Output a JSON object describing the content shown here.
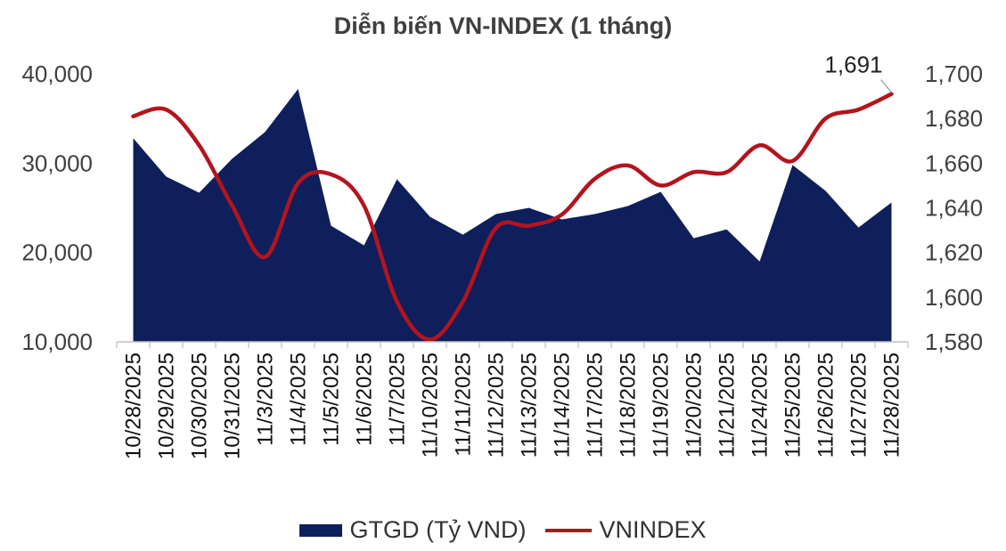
{
  "chart_data": {
    "type": "area+line",
    "title": "Diễn biến VN-INDEX (1 tháng)",
    "categories": [
      "10/28/2025",
      "10/29/2025",
      "10/30/2025",
      "10/31/2025",
      "11/3/2025",
      "11/4/2025",
      "11/5/2025",
      "11/6/2025",
      "11/7/2025",
      "11/10/2025",
      "11/11/2025",
      "11/12/2025",
      "11/13/2025",
      "11/14/2025",
      "11/17/2025",
      "11/18/2025",
      "11/19/2025",
      "11/20/2025",
      "11/21/2025",
      "11/24/2025",
      "11/25/2025",
      "11/26/2025",
      "11/27/2025",
      "11/28/2025"
    ],
    "series": [
      {
        "name": "GTGD (Tỷ VND)",
        "type": "area",
        "axis": "left",
        "color": "#0e1f5b",
        "values": [
          32800,
          28500,
          26700,
          30500,
          33500,
          38300,
          23000,
          20800,
          28200,
          24000,
          22000,
          24300,
          25000,
          23700,
          24300,
          25200,
          26800,
          21600,
          22600,
          19000,
          29800,
          26900,
          22800,
          25600
        ]
      },
      {
        "name": "VNINDEX",
        "type": "line",
        "axis": "right",
        "color": "#b3141e",
        "values": [
          1681,
          1684,
          1668,
          1641,
          1618,
          1651,
          1655,
          1641,
          1598,
          1581,
          1598,
          1631,
          1632,
          1637,
          1653,
          1659,
          1650,
          1656,
          1656,
          1668,
          1661,
          1680,
          1684,
          1691
        ]
      }
    ],
    "left_axis": {
      "ylim": [
        10000,
        40000
      ],
      "ticks": [
        "10,000",
        "20,000",
        "30,000",
        "40,000"
      ],
      "tick_values": [
        10000,
        20000,
        30000,
        40000
      ]
    },
    "right_axis": {
      "ylim": [
        1580,
        1700
      ],
      "ticks": [
        "1,580",
        "1,600",
        "1,620",
        "1,640",
        "1,660",
        "1,680",
        "1,700"
      ],
      "tick_values": [
        1580,
        1600,
        1620,
        1640,
        1660,
        1680,
        1700
      ]
    },
    "annotation": {
      "text": "1,691"
    },
    "grid": false,
    "legend_position": "bottom"
  }
}
